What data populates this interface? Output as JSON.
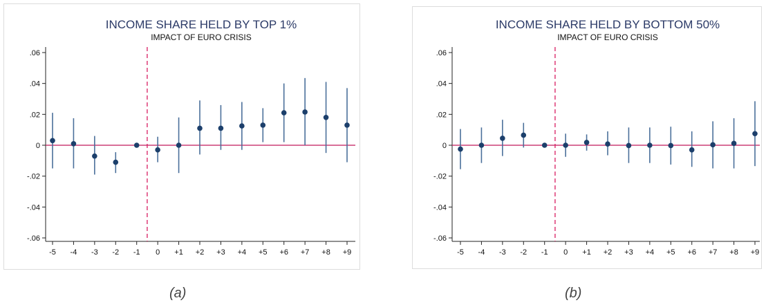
{
  "colors": {
    "marker": "#1c3f6b",
    "ci_line": "#4a6f9a",
    "zero_line": "#c2185b",
    "event_line": "#d81b60",
    "axis": "#222222",
    "title": "#2b3a67"
  },
  "captions": [
    "(a)",
    "(b)"
  ],
  "chart_data": [
    {
      "type": "scatter",
      "title": "INCOME SHARE HELD BY TOP 1%",
      "subtitle": "IMPACT OF EURO CRISIS",
      "xlabel": "",
      "ylabel": "",
      "x": [
        "-5",
        "-4",
        "-3",
        "-2",
        "-1",
        "0",
        "+1",
        "+2",
        "+3",
        "+4",
        "+5",
        "+6",
        "+7",
        "+8",
        "+9"
      ],
      "values": [
        0.003,
        0.001,
        -0.007,
        -0.011,
        0.0,
        -0.003,
        0.0,
        0.011,
        0.011,
        0.0125,
        0.013,
        0.021,
        0.0215,
        0.018,
        0.013
      ],
      "ci_low": [
        -0.015,
        -0.015,
        -0.019,
        -0.018,
        0.0,
        -0.011,
        -0.018,
        -0.006,
        -0.003,
        -0.003,
        0.002,
        0.002,
        0.0,
        -0.005,
        -0.011
      ],
      "ci_high": [
        0.021,
        0.0175,
        0.006,
        -0.0045,
        0.0,
        0.0055,
        0.018,
        0.029,
        0.026,
        0.028,
        0.024,
        0.04,
        0.0435,
        0.041,
        0.037
      ],
      "ylim": [
        -0.06,
        0.06
      ],
      "yticks": [
        ".06",
        ".04",
        ".02",
        "0",
        "-.02",
        "-.04",
        "-.06"
      ],
      "event_line_between": [
        "-1",
        "0"
      ],
      "reference_line": 0,
      "grid": false,
      "legend": "none"
    },
    {
      "type": "scatter",
      "title": "INCOME SHARE HELD BY BOTTOM 50%",
      "subtitle": "IMPACT OF EURO CRISIS",
      "xlabel": "",
      "ylabel": "",
      "x": [
        "-5",
        "-4",
        "-3",
        "-2",
        "-1",
        "0",
        "+1",
        "+2",
        "+3",
        "+4",
        "+5",
        "+6",
        "+7",
        "+8",
        "+9"
      ],
      "values": [
        -0.0025,
        0.0,
        0.0045,
        0.0065,
        0.0,
        0.0,
        0.0018,
        0.0008,
        -0.0002,
        0.0,
        -0.0002,
        -0.003,
        0.0003,
        0.0012,
        0.0075
      ],
      "ci_low": [
        -0.0155,
        -0.0115,
        -0.007,
        -0.0015,
        0.0,
        -0.0075,
        -0.0035,
        -0.0065,
        -0.0115,
        -0.0115,
        -0.0125,
        -0.014,
        -0.015,
        -0.015,
        -0.0135
      ],
      "ci_high": [
        0.0105,
        0.0115,
        0.0165,
        0.0145,
        0.0,
        0.0075,
        0.007,
        0.009,
        0.0115,
        0.0115,
        0.012,
        0.009,
        0.0155,
        0.0175,
        0.0285
      ],
      "ylim": [
        -0.06,
        0.06
      ],
      "yticks": [
        ".06",
        ".04",
        ".02",
        "0",
        "-.02",
        "-.04",
        "-.06"
      ],
      "event_line_between": [
        "-1",
        "0"
      ],
      "reference_line": 0,
      "grid": false,
      "legend": "none"
    }
  ]
}
